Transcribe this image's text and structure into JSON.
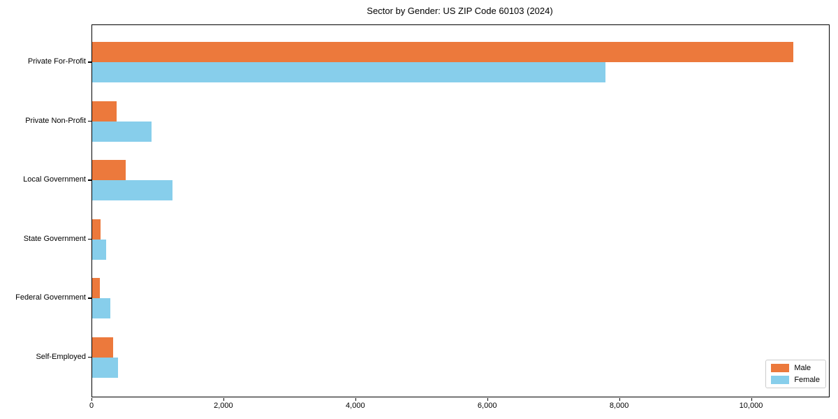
{
  "chart_data": {
    "type": "bar",
    "orientation": "horizontal",
    "title": "Sector by Gender: US ZIP Code 60103 (2024)",
    "categories": [
      "Private For-Profit",
      "Private Non-Profit",
      "Local Government",
      "State Government",
      "Federal Government",
      "Self-Employed"
    ],
    "series": [
      {
        "name": "Male",
        "color": "#ec793c",
        "values": [
          10630,
          370,
          510,
          130,
          120,
          320
        ]
      },
      {
        "name": "Female",
        "color": "#87ceeb",
        "values": [
          7780,
          900,
          1220,
          210,
          270,
          390
        ]
      }
    ],
    "xlabel": "",
    "ylabel": "",
    "xlim": [
      0,
      11170
    ],
    "xticks": [
      0,
      2000,
      4000,
      6000,
      8000,
      10000
    ],
    "xtick_labels": [
      "0",
      "2,000",
      "4,000",
      "6,000",
      "8,000",
      "10,000"
    ],
    "grid": false,
    "legend_position": "lower right",
    "axis_color": "#000000",
    "background_color": "#ffffff"
  }
}
